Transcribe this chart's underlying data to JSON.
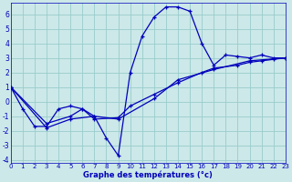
{
  "xlabel": "Graphe des températures (°c)",
  "background_color": "#cce8e8",
  "grid_color": "#99cccc",
  "line_color": "#0000bb",
  "xlim": [
    0,
    23
  ],
  "ylim": [
    -4.2,
    6.8
  ],
  "yticks": [
    -4,
    -3,
    -2,
    -1,
    0,
    1,
    2,
    3,
    4,
    5,
    6
  ],
  "xticks": [
    0,
    1,
    2,
    3,
    4,
    5,
    6,
    7,
    8,
    9,
    10,
    11,
    12,
    13,
    14,
    15,
    16,
    17,
    18,
    19,
    20,
    21,
    22,
    23
  ],
  "series1_x": [
    0,
    1,
    2,
    3,
    4,
    5,
    6,
    7,
    8,
    9,
    10,
    11,
    12,
    13,
    14,
    15,
    16,
    17,
    18,
    19,
    20,
    21,
    22,
    23
  ],
  "series1_y": [
    1.0,
    -0.5,
    -1.7,
    -1.7,
    -0.5,
    -0.3,
    -0.5,
    -1.0,
    -2.5,
    -3.7,
    2.0,
    4.5,
    5.8,
    6.5,
    6.5,
    6.2,
    4.0,
    2.5,
    3.2,
    3.1,
    3.0,
    3.2,
    3.0,
    3.0
  ],
  "series2_x": [
    0,
    3,
    5,
    6,
    7,
    9,
    10,
    12,
    14,
    16,
    17,
    19,
    20,
    21,
    22,
    23
  ],
  "series2_y": [
    1.0,
    -1.5,
    -1.0,
    -0.5,
    -1.2,
    -1.1,
    -0.3,
    0.5,
    1.3,
    2.0,
    2.3,
    2.5,
    2.7,
    2.8,
    2.9,
    3.0
  ],
  "series3_x": [
    0,
    3,
    5,
    7,
    9,
    12,
    14,
    17,
    20,
    23
  ],
  "series3_y": [
    1.0,
    -1.8,
    -1.2,
    -1.0,
    -1.2,
    0.2,
    1.5,
    2.2,
    2.8,
    3.0
  ]
}
